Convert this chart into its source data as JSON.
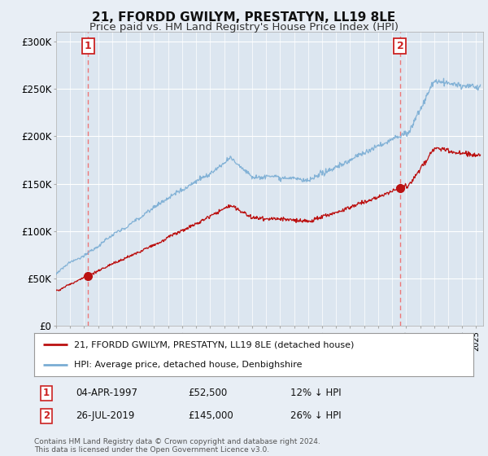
{
  "title": "21, FFORDD GWILYM, PRESTATYN, LL19 8LE",
  "subtitle": "Price paid vs. HM Land Registry's House Price Index (HPI)",
  "title_fontsize": 11,
  "subtitle_fontsize": 9.5,
  "bg_color": "#e8eef5",
  "plot_bg_color": "#dce6f0",
  "grid_color": "#c8d4e0",
  "ylabel_values": [
    "£0",
    "£50K",
    "£100K",
    "£150K",
    "£200K",
    "£250K",
    "£300K"
  ],
  "yticks": [
    0,
    50000,
    100000,
    150000,
    200000,
    250000,
    300000
  ],
  "ylim": [
    0,
    310000
  ],
  "xlim_start": 1995.0,
  "xlim_end": 2025.5,
  "sale1_date": 1997.27,
  "sale1_price": 52500,
  "sale1_label": "1",
  "sale2_date": 2019.57,
  "sale2_price": 145000,
  "sale2_label": "2",
  "hpi_line_color": "#7aadd4",
  "price_line_color": "#bb1111",
  "sale_dot_color": "#bb1111",
  "dashed_line_color": "#ee7777",
  "legend_line1": "21, FFORDD GWILYM, PRESTATYN, LL19 8LE (detached house)",
  "legend_line2": "HPI: Average price, detached house, Denbighshire",
  "annotation1_date": "04-APR-1997",
  "annotation1_price": "£52,500",
  "annotation1_hpi": "12% ↓ HPI",
  "annotation2_date": "26-JUL-2019",
  "annotation2_price": "£145,000",
  "annotation2_hpi": "26% ↓ HPI",
  "footer": "Contains HM Land Registry data © Crown copyright and database right 2024.\nThis data is licensed under the Open Government Licence v3.0."
}
